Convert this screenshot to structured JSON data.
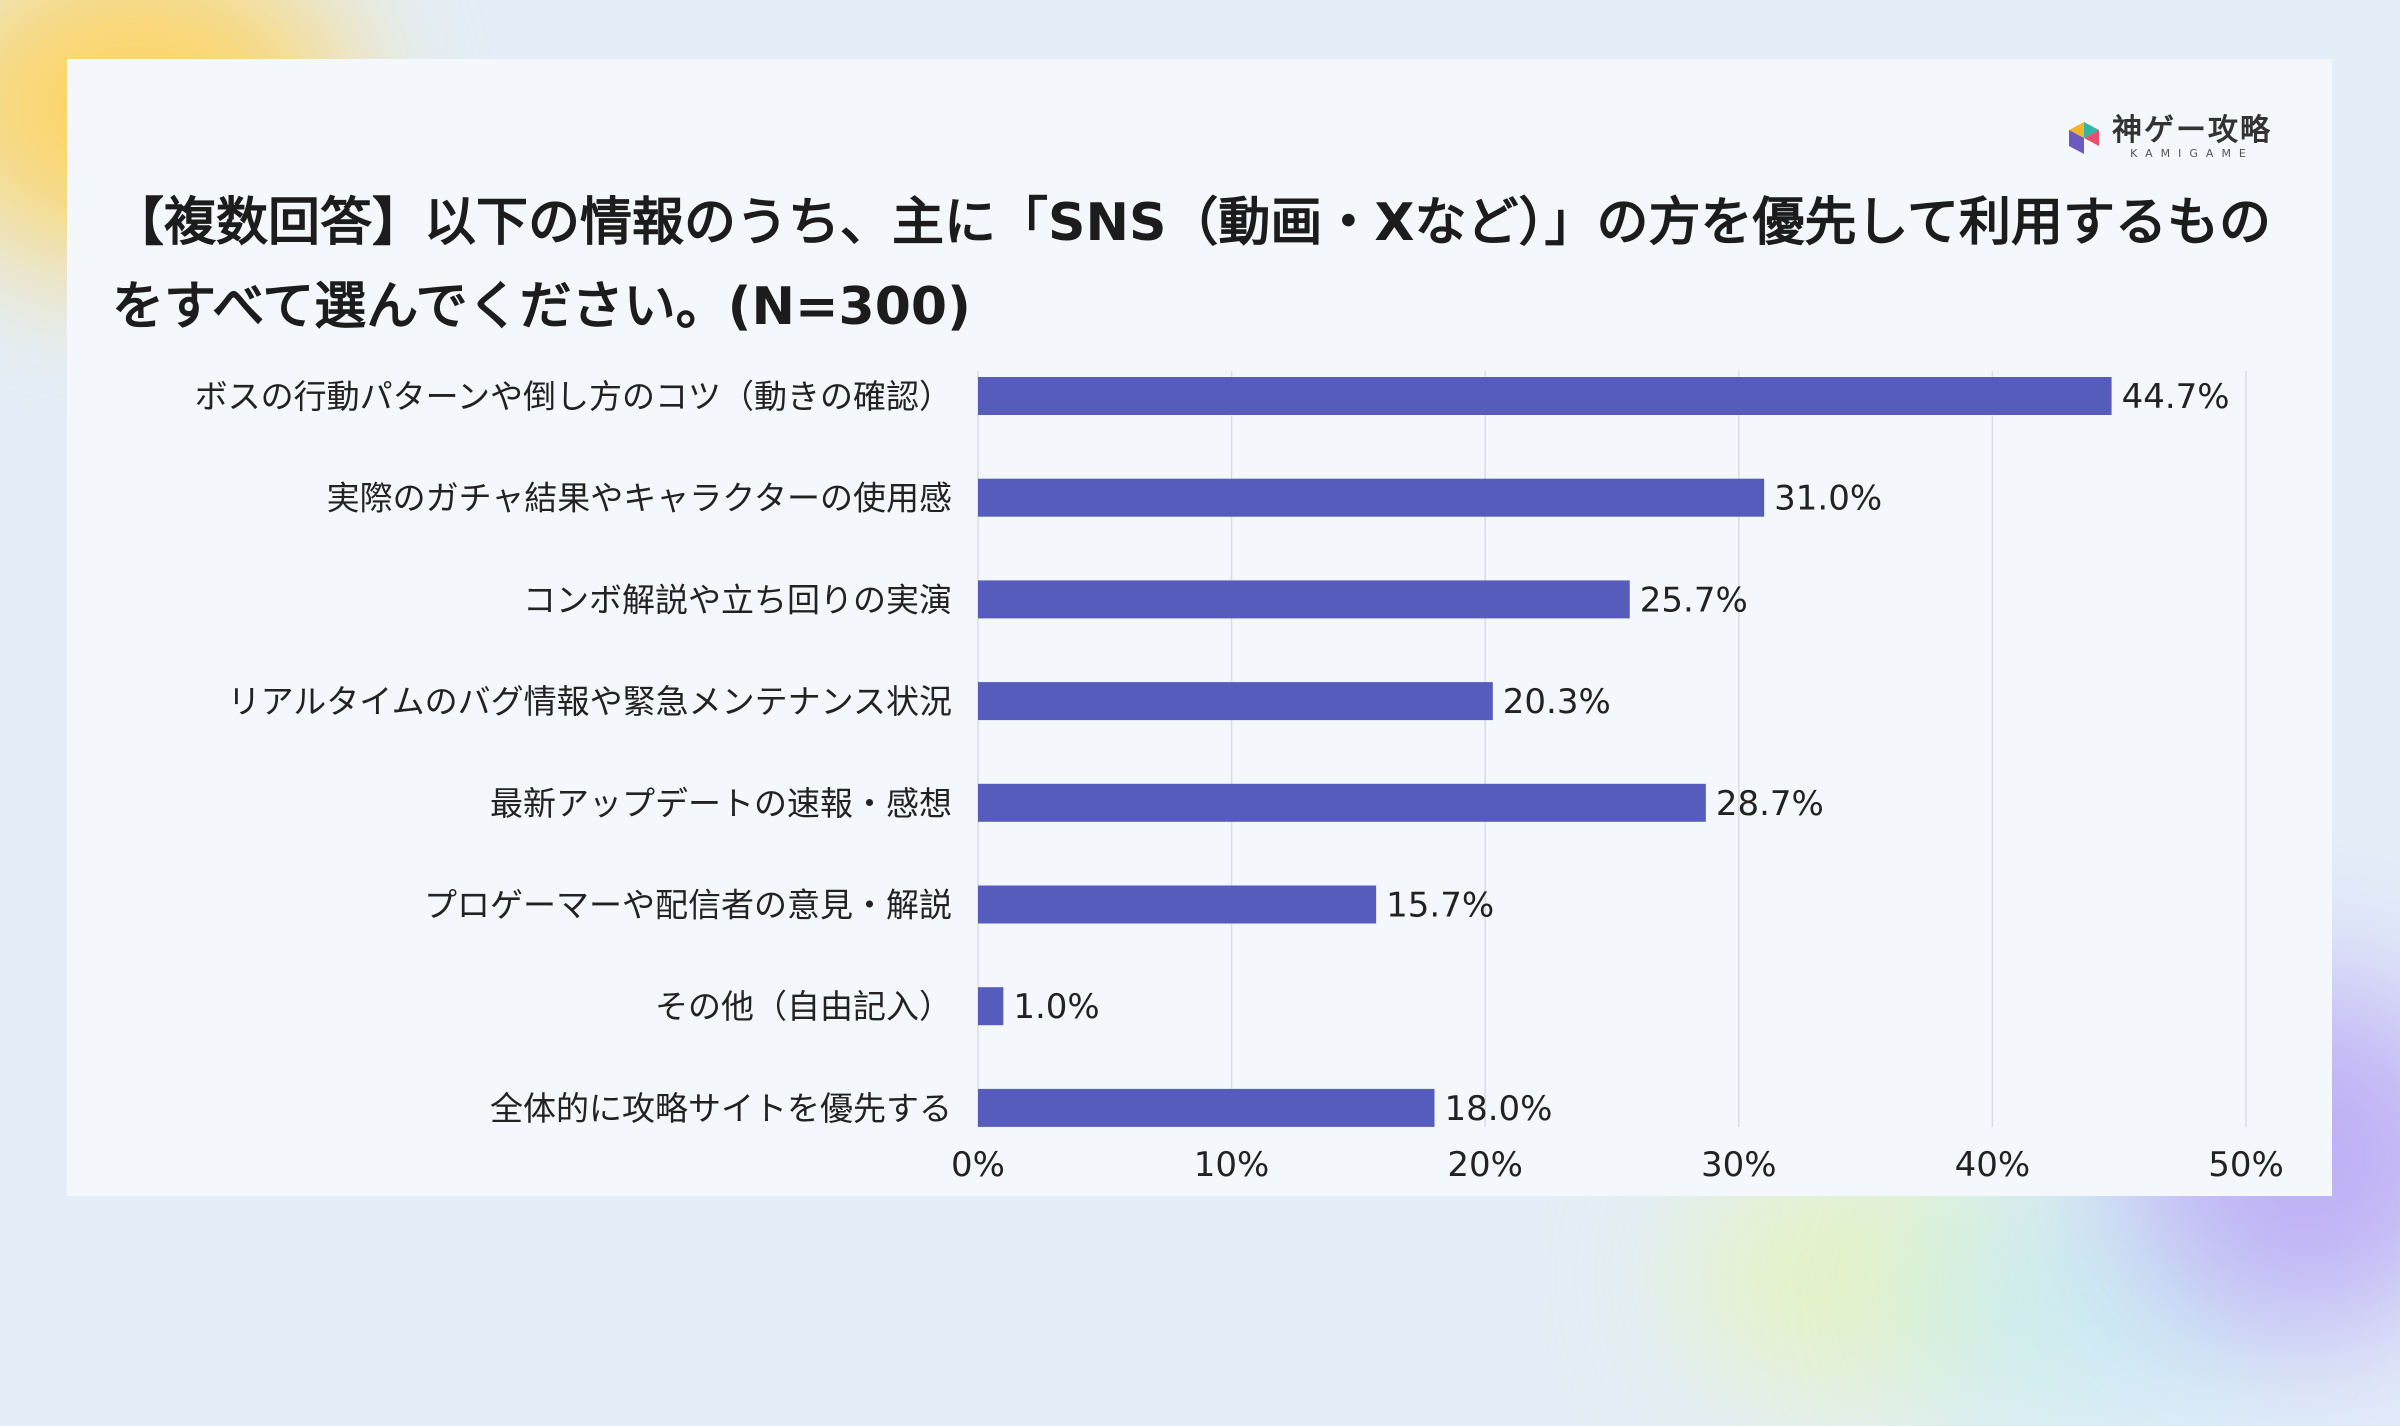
{
  "brand": {
    "name": "神ゲー攻略",
    "sub": "KAMIGAME",
    "icon": "kamigame-logo-icon",
    "colors": [
      "#2fb6a6",
      "#e84f6a",
      "#f3b62b",
      "#6d59c3"
    ]
  },
  "colors": {
    "bar": "#565cbc",
    "grid": "#d9dde3",
    "card": "#f4f8fc",
    "background": "#e3eef8"
  },
  "chart_data": {
    "type": "bar",
    "orientation": "horizontal",
    "title": "【複数回答】以下の情報のうち、主に「SNS（動画・Xなど）」の方を優先して利用するものをすべて選んでください。(N=300)",
    "categories": [
      "ボスの行動パターンや倒し方のコツ（動きの確認）",
      "実際のガチャ結果やキャラクターの使用感",
      "コンボ解説や立ち回りの実演",
      "リアルタイムのバグ情報や緊急メンテナンス状況",
      "最新アップデートの速報・感想",
      "プロゲーマーや配信者の意見・解説",
      "その他（自由記入）",
      "全体的に攻略サイトを優先する"
    ],
    "values": [
      44.7,
      31.0,
      25.7,
      20.3,
      28.7,
      15.7,
      1.0,
      18.0
    ],
    "value_labels": [
      "44.7%",
      "31.0%",
      "25.7%",
      "20.3%",
      "28.7%",
      "15.7%",
      "1.0%",
      "18.0%"
    ],
    "xlim": [
      0,
      50
    ],
    "x_ticks": [
      "0%",
      "10%",
      "20%",
      "30%",
      "40%",
      "50%"
    ],
    "grid": true,
    "legend": "none"
  }
}
